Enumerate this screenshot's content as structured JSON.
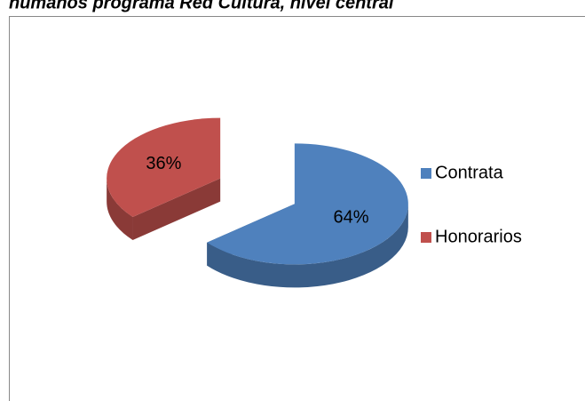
{
  "chart_data": {
    "type": "pie",
    "title": "humanos programa Red Cultura, nivel central",
    "categories": [
      "Contrata",
      "Honorarios"
    ],
    "values": [
      64,
      36
    ],
    "value_labels": [
      "64%",
      "36%"
    ],
    "colors": [
      "#4f81bd",
      "#c0504d"
    ],
    "legend": "right"
  }
}
